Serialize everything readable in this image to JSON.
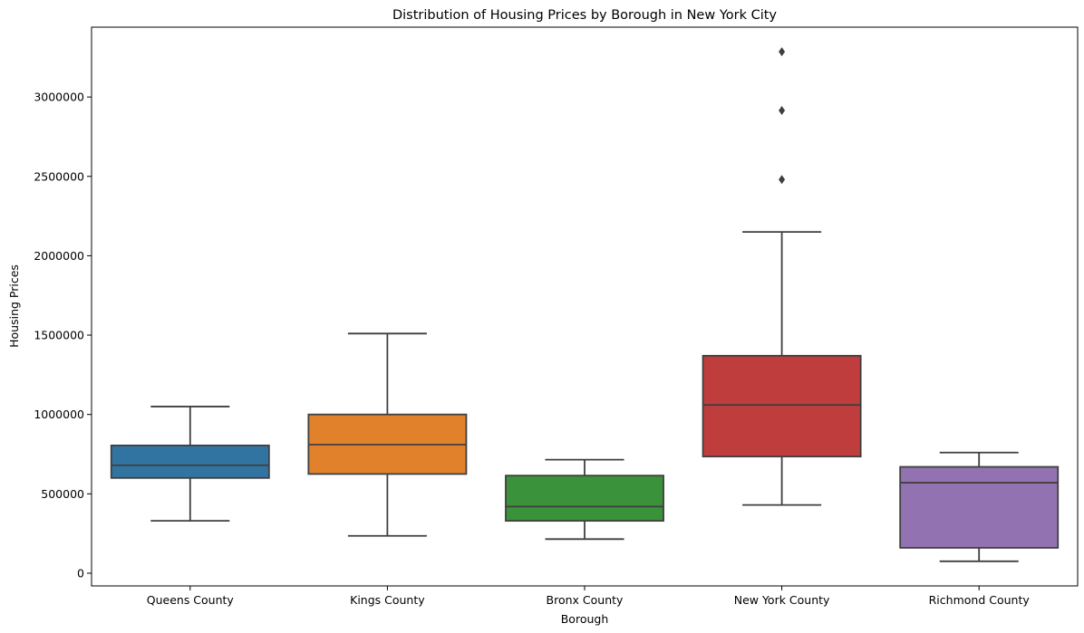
{
  "chart_data": {
    "type": "box",
    "title": "Distribution of Housing Prices by Borough in New York City",
    "xlabel": "Borough",
    "ylabel": "Housing Prices",
    "ylim": [
      -80000,
      3440000
    ],
    "yticks": [
      0,
      500000,
      1000000,
      1500000,
      2000000,
      2500000,
      3000000
    ],
    "ytick_labels": [
      "0",
      "500000",
      "1000000",
      "1500000",
      "2000000",
      "2500000",
      "3000000"
    ],
    "grid": false,
    "edge_color": "#3f3f3f",
    "categories": [
      "Queens County",
      "Kings County",
      "Bronx County",
      "New York County",
      "Richmond County"
    ],
    "series": [
      {
        "category": "Queens County",
        "color": "#3274a1",
        "whisker_low": 330000,
        "q1": 600000,
        "median": 680000,
        "q3": 805000,
        "whisker_high": 1050000,
        "outliers": []
      },
      {
        "category": "Kings County",
        "color": "#e1812c",
        "whisker_low": 235000,
        "q1": 625000,
        "median": 810000,
        "q3": 1000000,
        "whisker_high": 1510000,
        "outliers": []
      },
      {
        "category": "Bronx County",
        "color": "#3a923a",
        "whisker_low": 215000,
        "q1": 330000,
        "median": 420000,
        "q3": 615000,
        "whisker_high": 715000,
        "outliers": []
      },
      {
        "category": "New York County",
        "color": "#c03d3e",
        "whisker_low": 430000,
        "q1": 735000,
        "median": 1060000,
        "q3": 1370000,
        "whisker_high": 2150000,
        "outliers": [
          2480000,
          2915000,
          3285000
        ]
      },
      {
        "category": "Richmond County",
        "color": "#9372b2",
        "whisker_low": 75000,
        "q1": 160000,
        "median": 570000,
        "q3": 670000,
        "whisker_high": 760000,
        "outliers": []
      }
    ]
  }
}
